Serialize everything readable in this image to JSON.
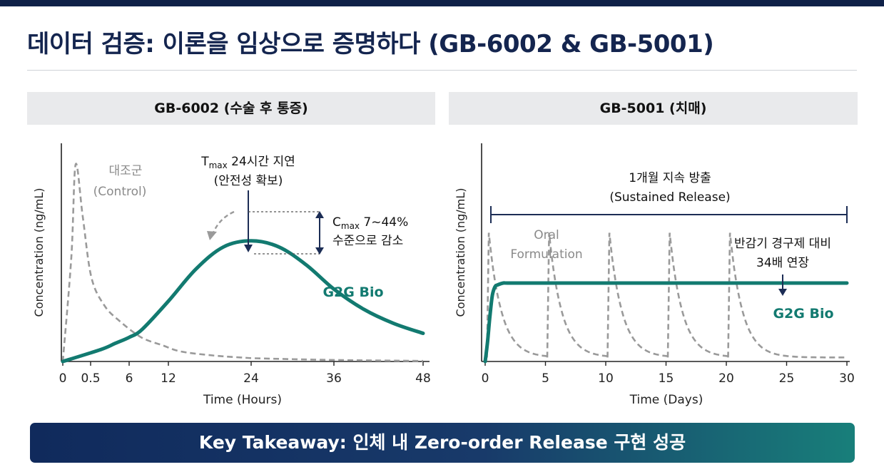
{
  "title": "데이터 검증: 이론을 임상으로 증명하다 (GB-6002 & GB-5001)",
  "takeaway": "Key Takeaway: 인체 내 Zero-order Release 구현 성공",
  "colors": {
    "brand_navy": "#14254f",
    "teal": "#127a70",
    "control_gray": "#9a9a9a"
  },
  "chart_data": [
    {
      "type": "line",
      "title": "GB-6002 (수술 후 통증)",
      "xlabel": "Time (Hours)",
      "ylabel": "Concentration (ng/mL)",
      "xlim": [
        0,
        48
      ],
      "ylim": [
        0,
        100
      ],
      "x_ticks": [
        0,
        0.5,
        6,
        12,
        24,
        36,
        48
      ],
      "x_tick_labels": [
        "0",
        "0.5",
        "6",
        "12",
        "24",
        "36",
        "48"
      ],
      "series": [
        {
          "name": "대조군",
          "name_en": "(Control)",
          "style": "dashed",
          "color": "#9a9a9a",
          "x": [
            0,
            1,
            2,
            3,
            4,
            5,
            6,
            8,
            10,
            12,
            16,
            20,
            24,
            36,
            48
          ],
          "y": [
            0,
            52,
            98,
            72,
            42,
            28,
            20,
            12,
            8,
            5,
            3,
            2,
            1.5,
            0.7,
            0.3
          ]
        },
        {
          "name": "G2G Bio",
          "style": "solid",
          "color": "#127a70",
          "x": [
            0,
            2,
            4,
            6,
            8,
            12,
            16,
            20,
            24,
            28,
            32,
            36,
            40,
            44,
            48
          ],
          "y": [
            0,
            6,
            9,
            12,
            16,
            30,
            46,
            57,
            60,
            57,
            48,
            36,
            26,
            19,
            14
          ]
        }
      ],
      "annotations": {
        "tmax_prefix": "T",
        "tmax_sub": "max",
        "tmax_rest": " 24시간 지연",
        "tmax_line2": "(안전성 확보)",
        "cmax_prefix": "C",
        "cmax_sub": "max",
        "cmax_rest": " 7~44%",
        "cmax_line2": "수준으로 감소"
      }
    },
    {
      "type": "line",
      "title": "GB-5001 (치매)",
      "xlabel": "Time (Days)",
      "ylabel": "Concentration (ng/mL)",
      "xlim": [
        0,
        30
      ],
      "ylim": [
        0,
        100
      ],
      "x_ticks": [
        0,
        5,
        10,
        15,
        20,
        25,
        30
      ],
      "x_tick_labels": [
        "0",
        "5",
        "10",
        "15",
        "20",
        "25",
        "30"
      ],
      "dose_days": [
        0.3,
        5.3,
        10.3,
        15.3,
        20.3
      ],
      "series": [
        {
          "name": "Oral",
          "name_line2": "Formulation",
          "style": "dashed",
          "color": "#9a9a9a",
          "peak": 64,
          "trough": 2
        },
        {
          "name": "G2G Bio",
          "style": "solid",
          "color": "#127a70",
          "x": [
            0,
            0.2,
            0.4,
            0.6,
            0.8,
            1.0,
            1.5,
            2,
            5,
            10,
            15,
            20,
            25,
            30
          ],
          "y": [
            0,
            10,
            23,
            33,
            37,
            38,
            39,
            39,
            39,
            39,
            39,
            39,
            39,
            39
          ]
        }
      ],
      "annotations": {
        "sustained_line1": "1개월 지속 방출",
        "sustained_line2": "(Sustained Release)",
        "half_life_line1": "반감기 경구제 대비",
        "half_life_line2": "34배 연장"
      }
    }
  ]
}
